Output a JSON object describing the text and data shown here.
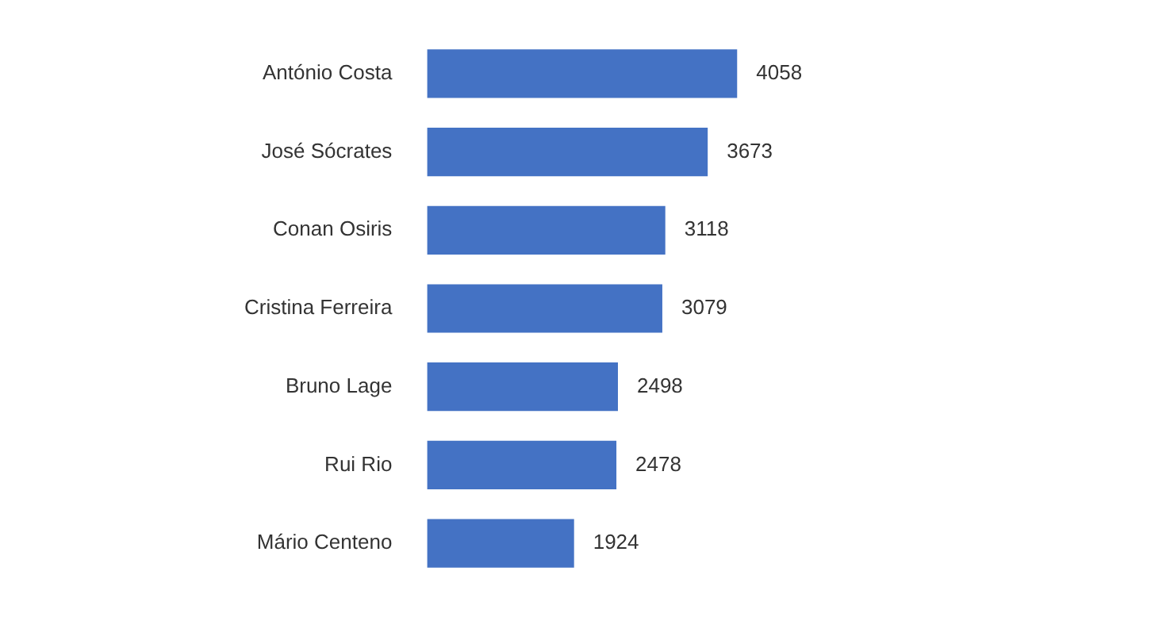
{
  "chart_data": {
    "type": "bar",
    "orientation": "horizontal",
    "categories": [
      "António Costa",
      "José Sócrates",
      "Conan Osiris",
      "Cristina Ferreira",
      "Bruno Lage",
      "Rui Rio",
      "Mário Centeno"
    ],
    "values": [
      4058,
      3673,
      3118,
      3079,
      2498,
      2478,
      1924
    ],
    "color": "#4472c4",
    "data_labels": true
  }
}
